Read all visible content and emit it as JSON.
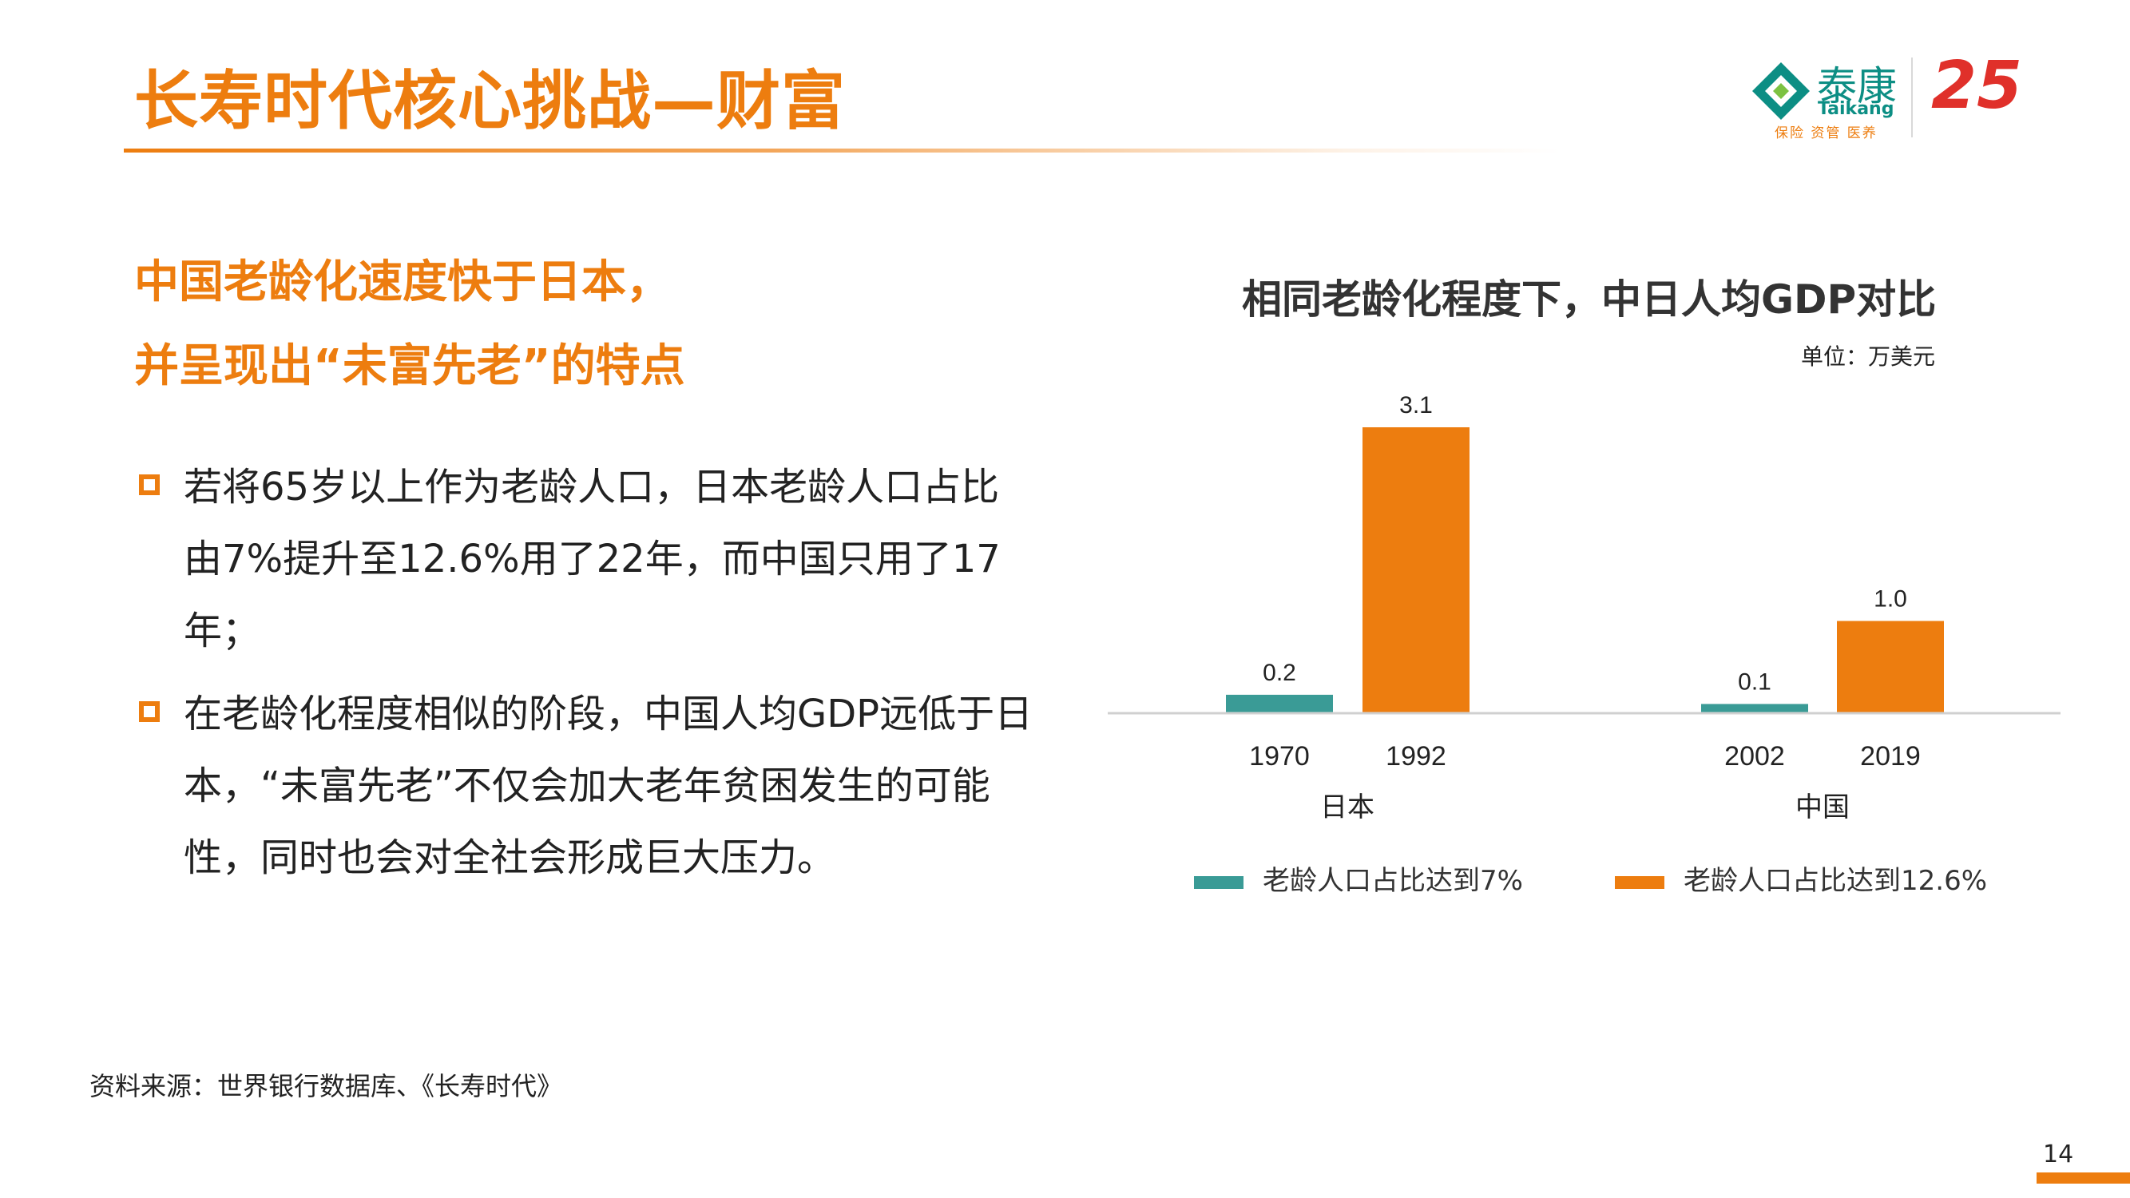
{
  "page": {
    "title": "长寿时代核心挑战—财富",
    "subtitle_lines": [
      "中国老龄化速度快于日本，",
      "并呈现出“未富先老”的特点"
    ],
    "bullets": [
      "若将65岁以上作为老龄人口，日本老龄人口占比由7%提升至12.6%用了22年，而中国只用了17年；",
      "在老龄化程度相似的阶段，中国人均GDP远低于日本，“未富先老”不仅会加大老年贫困发生的可能性，同时也会对全社会形成巨大压力。"
    ],
    "source": "资料来源：世界银行数据库、《长寿时代》",
    "page_number": "14"
  },
  "logo": {
    "name_cn": "泰康",
    "name_en": "Taikang",
    "tagline": "保险 资管 医养",
    "anniversary": "25"
  },
  "colors": {
    "accent": "#ED7D0F",
    "teal": "#3A9B96",
    "axis": "#D0D0D0"
  },
  "chart_data": {
    "type": "bar",
    "title": "相同老龄化程度下，中日人均GDP对比",
    "unit": "单位：万美元",
    "groups": [
      "日本",
      "中国"
    ],
    "categories": [
      "1970",
      "1992",
      "2002",
      "2019"
    ],
    "series": [
      {
        "name": "老龄人口占比达到7%",
        "color": "#3A9B96",
        "points": [
          {
            "x": "1970",
            "group": "日本",
            "value": 0.2
          },
          {
            "x": "2002",
            "group": "中国",
            "value": 0.1
          }
        ]
      },
      {
        "name": "老龄人口占比达到12.6%",
        "color": "#ED7D0F",
        "points": [
          {
            "x": "1992",
            "group": "日本",
            "value": 3.1
          },
          {
            "x": "2019",
            "group": "中国",
            "value": 1.0
          }
        ]
      }
    ],
    "data_labels": [
      "0.2",
      "3.1",
      "0.1",
      "1.0"
    ],
    "ylim": [
      0,
      3.1
    ],
    "grid": false,
    "legend_position": "bottom"
  }
}
